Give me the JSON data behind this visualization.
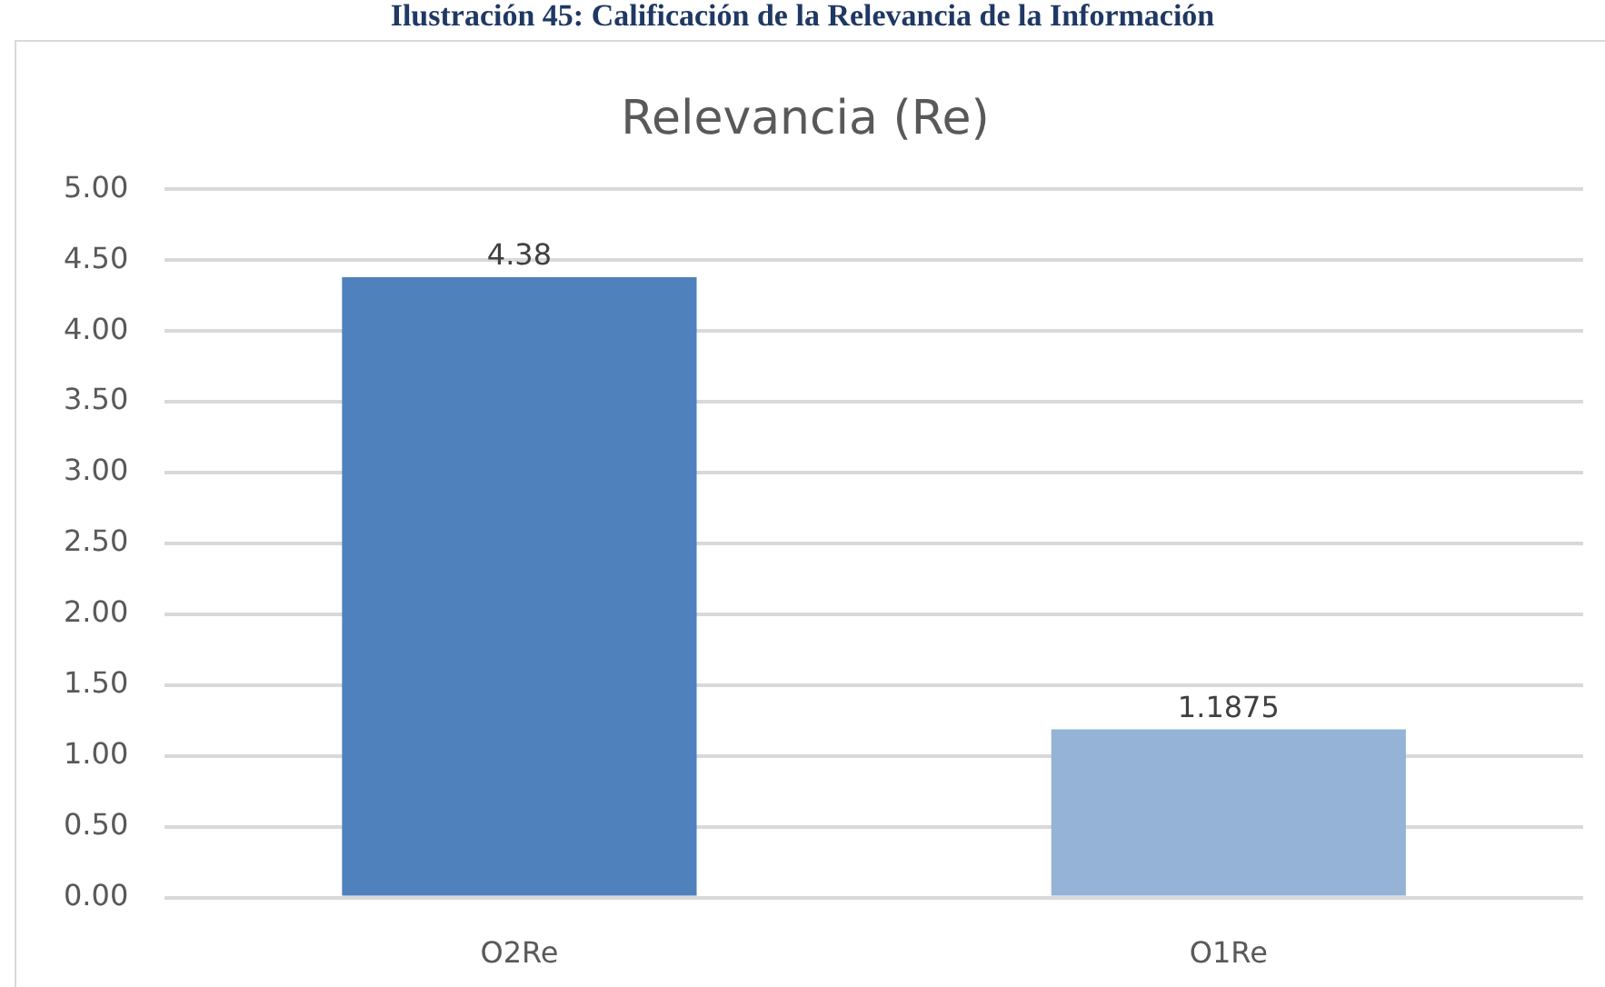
{
  "chart_data": {
    "type": "bar",
    "title": "Relevancia (Re)",
    "annotations": [
      "Ilustración 45: Calificación de la Relevancia de la Información"
    ],
    "categories": [
      "O2Re",
      "O1Re"
    ],
    "values": [
      4.38,
      1.1875
    ],
    "colors": [
      "#4f81bd",
      "#95b3d7"
    ],
    "ylim": [
      0,
      5
    ],
    "yticks": [
      {
        "value": 0,
        "label": "0.00"
      },
      {
        "value": 0.5,
        "label": "0.50"
      },
      {
        "value": 1,
        "label": "1.00"
      },
      {
        "value": 1.5,
        "label": "1.50"
      },
      {
        "value": 2,
        "label": "2.00"
      },
      {
        "value": 2.5,
        "label": "2.50"
      },
      {
        "value": 3,
        "label": "3.00"
      },
      {
        "value": 3.5,
        "label": "3.50"
      },
      {
        "value": 4,
        "label": "4.00"
      },
      {
        "value": 4.5,
        "label": "4.50"
      },
      {
        "value": 5,
        "label": "5.00"
      }
    ],
    "grid": "y",
    "data_labels": true,
    "legend": false
  }
}
